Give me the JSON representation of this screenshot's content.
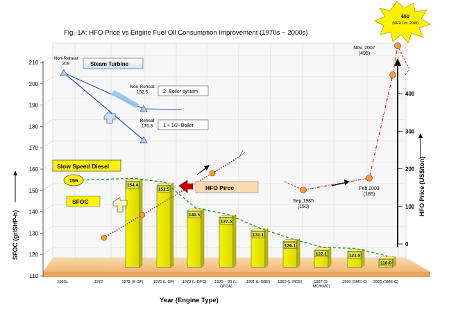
{
  "chart_data": {
    "type": "bar",
    "title": "Fig.-1A:  HFO Price vs Engine Fuel Oil Consumption Improvement (1970s ~ 2000s)",
    "xlabel": "Year (Engine Type)",
    "ylabel": "SFOC (gr/SHP-h)",
    "y2label": "HFO Price (US$/ton)",
    "ylim": [
      110,
      210
    ],
    "y2lim": [
      0,
      650
    ],
    "left_ticks": [
      "210",
      "200",
      "190",
      "180",
      "170",
      "160",
      "150",
      "140",
      "130",
      "120",
      "110"
    ],
    "right_ticks": [
      "400",
      "300",
      "200",
      "100",
      "0"
    ],
    "categories": [
      "1960s",
      "1972",
      "1973 (K-GF)",
      "1976 (L-GF)",
      "1978 (L-GFC)",
      "1979 ~ 80 (L-GFCA)",
      "1981 (L-GBE)",
      "1983 (L-MCE)",
      "1987 (S-MC/KMC)",
      "1996 (SMC-C)",
      "2005 (SME-C)"
    ],
    "sfoc_bars": {
      "name": "Slow Speed Diesel",
      "labels": [
        "154.4",
        "152.5",
        "140.5",
        "137.5",
        "131.1",
        "126.1",
        "122.1",
        "121.5",
        "118.0"
      ],
      "values": [
        154.4,
        152.5,
        140.5,
        137.5,
        131.1,
        126.1,
        122.1,
        121.5,
        118.0
      ]
    },
    "sfoc_start": {
      "label": "156",
      "value": 156
    },
    "sfoc_series_label": "SFOC",
    "hfo_series_label": "HFO Pirce",
    "steam_turbine": {
      "label": "Steam Turbine",
      "points": [
        {
          "text": "Non-Reheat\n208",
          "value": 208
        },
        {
          "text": "Non-Reheat\n192.6",
          "value": 192.6
        },
        {
          "text": "Reheat\n176.3",
          "value": 176.3
        }
      ],
      "boxes": [
        "2- Boiler system",
        "1 + 1/2- Boiler"
      ]
    },
    "hfo_price_points": [
      {
        "label": "Sep.1985\n(150)",
        "value": 150
      },
      {
        "label": "Feb.2003\n(185)",
        "value": 185
      },
      {
        "label": "Nov. 2007\n(495)",
        "value": 495
      },
      {
        "label": "650\n(MER Oct. 2008)",
        "value": 650
      }
    ]
  }
}
